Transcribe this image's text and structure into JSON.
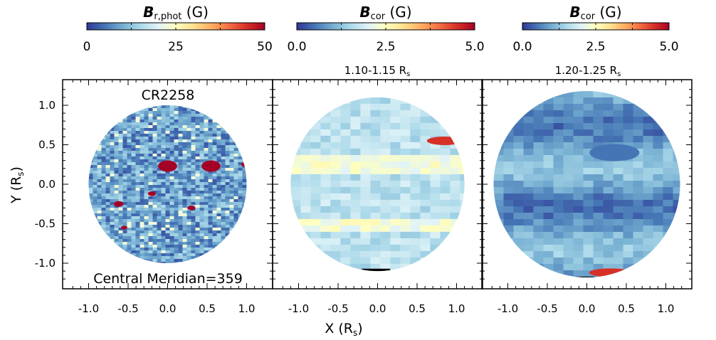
{
  "figure": {
    "xlabel": "X (R",
    "xlabel_sub": "s",
    "xlabel_close": ")",
    "ylabel": "Y (R",
    "ylabel_sub": "s",
    "ylabel_close": ")"
  },
  "colormap": [
    "#313695",
    "#4575b4",
    "#74add1",
    "#abd9e9",
    "#e0f3f8",
    "#ffffbf",
    "#fee090",
    "#fdae61",
    "#f46d43",
    "#d73027",
    "#a50026"
  ],
  "chart_data": [
    {
      "type": "heatmap",
      "title": "",
      "annotation_top": "CR2258",
      "annotation_bottom": "Central Meridian=359",
      "colorbar": {
        "label_main": "B",
        "label_sub": "r,phot",
        "label_unit": " (G)",
        "ticks": [
          "0",
          "25",
          "50"
        ],
        "range": [
          0,
          50
        ]
      },
      "xlim": [
        -1.33,
        1.33
      ],
      "ylim": [
        -1.33,
        1.33
      ],
      "xticks": [
        "-1.0",
        "-0.5",
        "0.0",
        "0.5",
        "1.0"
      ],
      "yticks": [
        "-1.0",
        "-0.5",
        "0.0",
        "0.5",
        "1.0"
      ],
      "disk_radius": 1.0
    },
    {
      "type": "heatmap",
      "title": "1.10-1.15 R",
      "title_sub": "s",
      "colorbar": {
        "label_main": "B",
        "label_sub": "cor",
        "label_unit": " (G)",
        "ticks": [
          "0.0",
          "2.5",
          "5.0"
        ],
        "range": [
          0,
          5
        ]
      },
      "xlim": [
        -1.33,
        1.33
      ],
      "ylim": [
        -1.33,
        1.33
      ],
      "xticks": [
        "-1.0",
        "-0.5",
        "0.0",
        "0.5",
        "1.0"
      ],
      "disk_radius": 1.1
    },
    {
      "type": "heatmap",
      "title": "1.20-1.25 R",
      "title_sub": "s",
      "colorbar": {
        "label_main": "B",
        "label_sub": "cor",
        "label_unit": " (G)",
        "ticks": [
          "0.0",
          "2.5",
          "5.0"
        ],
        "range": [
          0,
          5
        ]
      },
      "xlim": [
        -1.33,
        1.33
      ],
      "ylim": [
        -1.33,
        1.33
      ],
      "xticks": [
        "-1.0",
        "-0.5",
        "0.0",
        "0.5",
        "1.0"
      ],
      "disk_radius": 1.18
    }
  ]
}
